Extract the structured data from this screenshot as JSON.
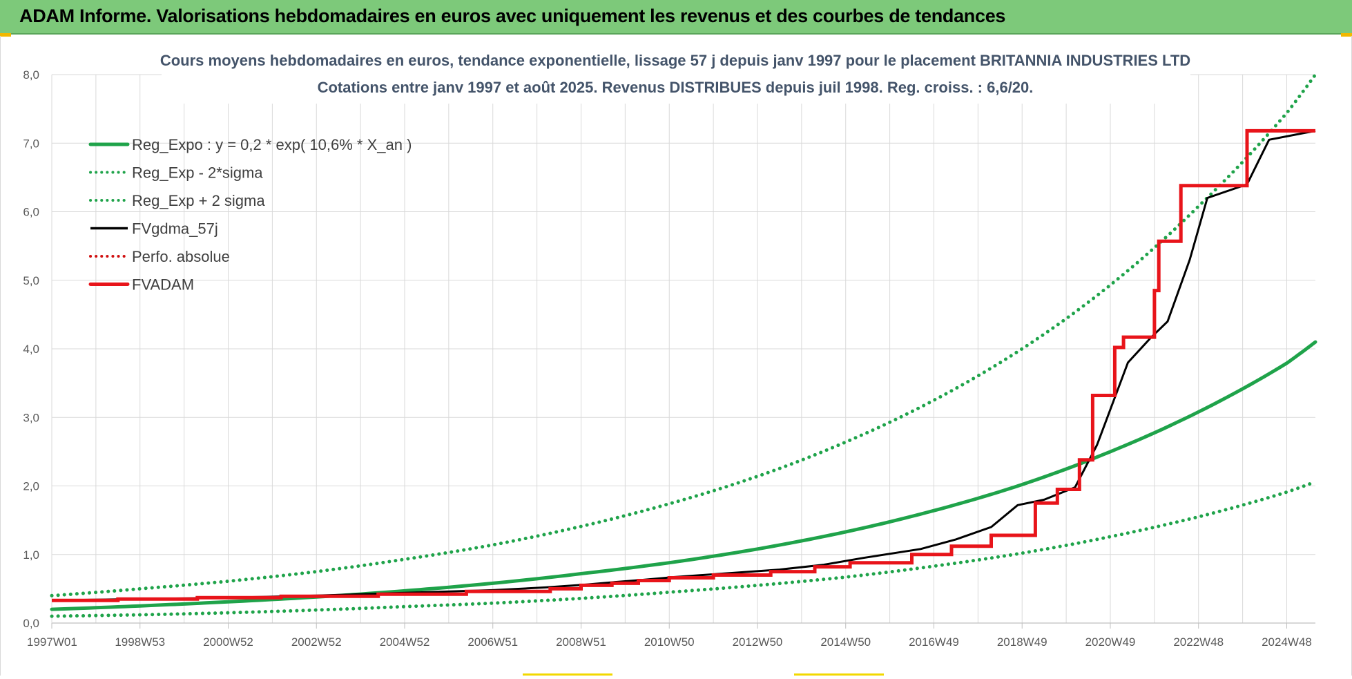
{
  "banner": {
    "title": "ADAM Informe. Valorisations hebdomadaires en euros avec uniquement les revenus et des courbes de tendances"
  },
  "colors": {
    "banner_bg": "#7dc97a",
    "reg_green": "#1fa34a",
    "fv_black": "#000000",
    "fvadam_red": "#e8141a",
    "perfo_red": "#d01010",
    "grid": "#d9d9d9"
  },
  "chart_data": {
    "type": "line",
    "title_line1": "Cours moyens hebdomadaires en euros, tendance exponentielle, lissage 57 j depuis janv 1997 pour le placement BRITANNIA  INDUSTRIES LTD",
    "title_line2": "Cotations entre janv 1997 et août 2025. Revenus DISTRIBUES depuis juil 1998. Reg. croiss. : 6,6/20.",
    "xlabel": "",
    "ylabel": "",
    "ylim": [
      0,
      8
    ],
    "xlim": [
      1997.0,
      2025.65
    ],
    "grid": true,
    "legend_position": "top-left",
    "y_ticks": [
      "0,0",
      "1,0",
      "2,0",
      "3,0",
      "4,0",
      "5,0",
      "6,0",
      "7,0",
      "8,0"
    ],
    "x_ticks": [
      {
        "label": "1997W01",
        "x": 1997.0
      },
      {
        "label": "1998W53",
        "x": 1999.0
      },
      {
        "label": "2000W52",
        "x": 2001.0
      },
      {
        "label": "2002W52",
        "x": 2003.0
      },
      {
        "label": "2004W52",
        "x": 2005.0
      },
      {
        "label": "2006W51",
        "x": 2007.0
      },
      {
        "label": "2008W51",
        "x": 2009.0
      },
      {
        "label": "2010W50",
        "x": 2011.0
      },
      {
        "label": "2012W50",
        "x": 2013.0
      },
      {
        "label": "2014W50",
        "x": 2015.0
      },
      {
        "label": "2016W49",
        "x": 2017.0
      },
      {
        "label": "2018W49",
        "x": 2019.0
      },
      {
        "label": "2020W49",
        "x": 2021.0
      },
      {
        "label": "2022W48",
        "x": 2023.0
      },
      {
        "label": "2024W48",
        "x": 2025.0
      }
    ],
    "series": [
      {
        "name": "Reg_Expo : y = 0,2 * exp( 10,6% *  X_an )",
        "style": "solid",
        "color": "#1fa34a",
        "x": [
          1997,
          1999,
          2001,
          2003,
          2005,
          2007,
          2009,
          2011,
          2013,
          2015,
          2017,
          2019,
          2021,
          2023,
          2025,
          2025.65
        ],
        "y": [
          0.2,
          0.25,
          0.31,
          0.38,
          0.47,
          0.58,
          0.72,
          0.88,
          1.08,
          1.33,
          1.64,
          2.02,
          2.5,
          3.08,
          3.79,
          4.1
        ]
      },
      {
        "name": "Reg_Exp - 2*sigma",
        "style": "dotted",
        "color": "#1fa34a",
        "x": [
          1997,
          1999,
          2001,
          2003,
          2005,
          2007,
          2009,
          2011,
          2013,
          2015,
          2017,
          2019,
          2021,
          2023,
          2025,
          2025.65
        ],
        "y": [
          0.1,
          0.12,
          0.15,
          0.19,
          0.24,
          0.29,
          0.36,
          0.45,
          0.55,
          0.67,
          0.83,
          1.02,
          1.26,
          1.55,
          1.91,
          2.06
        ]
      },
      {
        "name": "Reg_Exp + 2 sigma",
        "style": "dotted",
        "color": "#1fa34a",
        "x": [
          1997,
          1999,
          2001,
          2003,
          2005,
          2007,
          2009,
          2011,
          2013,
          2015,
          2017,
          2019,
          2021,
          2023,
          2025,
          2025.65
        ],
        "y": [
          0.4,
          0.5,
          0.61,
          0.75,
          0.93,
          1.14,
          1.41,
          1.74,
          2.14,
          2.64,
          3.25,
          4.0,
          4.93,
          6.08,
          7.44,
          8.0
        ]
      },
      {
        "name": "FVgdma_57j",
        "style": "solid",
        "color": "#000000",
        "x": [
          1997,
          1999,
          2001,
          2003,
          2005,
          2007,
          2008.2,
          2009.1,
          2009.8,
          2010.4,
          2011.1,
          2012.2,
          2013.5,
          2014.5,
          2015.4,
          2016.7,
          2017.5,
          2018.3,
          2018.9,
          2019.5,
          2020.2,
          2020.7,
          2021.4,
          2021.9,
          2022.3,
          2022.8,
          2023.2,
          2024.1,
          2024.6,
          2025.65
        ],
        "y": [
          0.33,
          0.35,
          0.37,
          0.4,
          0.44,
          0.48,
          0.52,
          0.56,
          0.6,
          0.63,
          0.67,
          0.72,
          0.78,
          0.85,
          0.95,
          1.08,
          1.22,
          1.4,
          1.72,
          1.8,
          1.98,
          2.6,
          3.8,
          4.15,
          4.4,
          5.3,
          6.2,
          6.4,
          7.05,
          7.18
        ]
      },
      {
        "name": "Perfo. absolue",
        "style": "dotted",
        "color": "#d01010",
        "x": [],
        "y": []
      },
      {
        "name": "FVADAM",
        "style": "step",
        "color": "#e8141a",
        "x": [
          1997.0,
          1998.5,
          2000.3,
          2002.2,
          2004.4,
          2006.4,
          2008.3,
          2009.0,
          2009.7,
          2010.3,
          2011.0,
          2012.0,
          2013.3,
          2014.3,
          2015.1,
          2016.5,
          2017.4,
          2018.3,
          2019.3,
          2019.8,
          2020.3,
          2020.6,
          2021.1,
          2021.3,
          2022.0,
          2022.1,
          2022.6,
          2023.3,
          2024.1,
          2025.65
        ],
        "y": [
          0.33,
          0.35,
          0.37,
          0.39,
          0.42,
          0.46,
          0.5,
          0.55,
          0.58,
          0.62,
          0.66,
          0.7,
          0.75,
          0.82,
          0.88,
          1.0,
          1.12,
          1.28,
          1.75,
          1.95,
          2.38,
          3.32,
          4.02,
          4.17,
          4.85,
          5.57,
          6.38,
          6.38,
          7.18,
          7.18
        ]
      }
    ]
  }
}
